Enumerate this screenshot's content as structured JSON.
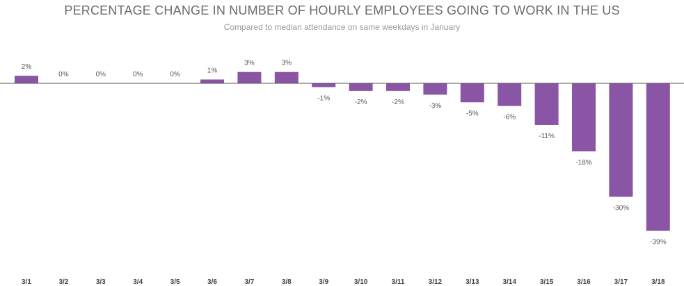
{
  "chart_data": {
    "type": "bar",
    "title": "PERCENTAGE CHANGE IN NUMBER OF HOURLY EMPLOYEES GOING TO WORK IN THE US",
    "subtitle": "Compared to median attendance on same weekdays in January",
    "xlabel": "",
    "ylabel": "",
    "categories": [
      "3/1",
      "3/2",
      "3/3",
      "3/4",
      "3/5",
      "3/6",
      "3/7",
      "3/8",
      "3/9",
      "3/10",
      "3/11",
      "3/12",
      "3/13",
      "3/14",
      "3/15",
      "3/16",
      "3/17",
      "3/18"
    ],
    "values": [
      2,
      0,
      0,
      0,
      0,
      1,
      3,
      3,
      -1,
      -2,
      -2,
      -3,
      -5,
      -6,
      -11,
      -18,
      -30,
      -39
    ],
    "value_labels": [
      "2%",
      "0%",
      "0%",
      "0%",
      "0%",
      "1%",
      "3%",
      "3%",
      "-1%",
      "-2%",
      "-2%",
      "-3%",
      "-5%",
      "-6%",
      "-11%",
      "-18%",
      "-30%",
      "-39%"
    ],
    "ylim": [
      -39,
      3
    ],
    "grid": false,
    "legend": "none",
    "colors": {
      "bar": "#8b55a6",
      "baseline": "#555555"
    }
  }
}
